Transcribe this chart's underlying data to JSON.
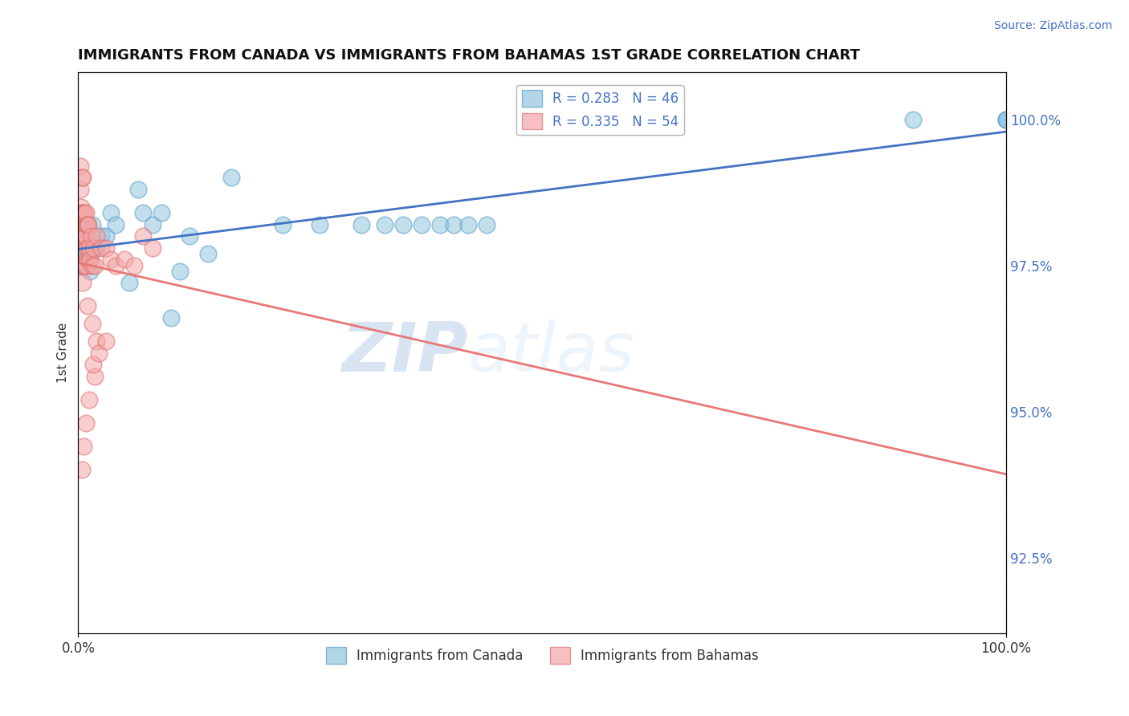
{
  "title": "IMMIGRANTS FROM CANADA VS IMMIGRANTS FROM BAHAMAS 1ST GRADE CORRELATION CHART",
  "source": "Source: ZipAtlas.com",
  "ylabel": "1st Grade",
  "xmin": 0.0,
  "xmax": 1.0,
  "ymin": 0.912,
  "ymax": 1.008,
  "yticks": [
    0.925,
    0.95,
    0.975,
    1.0
  ],
  "ytick_labels": [
    "92.5%",
    "95.0%",
    "97.5%",
    "100.0%"
  ],
  "xtick_labels": [
    "0.0%",
    "100.0%"
  ],
  "canada_color": "#92c5de",
  "canada_edge_color": "#5a9ec9",
  "bahamas_color": "#f4a6a6",
  "bahamas_edge_color": "#e07070",
  "legend_canada": "Immigrants from Canada",
  "legend_bahamas": "Immigrants from Bahamas",
  "R_canada": 0.283,
  "N_canada": 46,
  "R_bahamas": 0.335,
  "N_bahamas": 54,
  "trend_color_canada": "#4472c4",
  "trend_color_bahamas": "#e87878",
  "watermark_zip": "ZIP",
  "watermark_atlas": "atlas",
  "canada_x": [
    0.003,
    0.004,
    0.004,
    0.005,
    0.005,
    0.006,
    0.006,
    0.007,
    0.008,
    0.009,
    0.01,
    0.01,
    0.011,
    0.012,
    0.013,
    0.015,
    0.018,
    0.02,
    0.025,
    0.03,
    0.035,
    0.04,
    0.055,
    0.065,
    0.07,
    0.08,
    0.09,
    0.1,
    0.11,
    0.12,
    0.14,
    0.165,
    0.22,
    0.26,
    0.305,
    0.33,
    0.35,
    0.37,
    0.39,
    0.405,
    0.42,
    0.44,
    0.9,
    1.0,
    1.0,
    1.0
  ],
  "canada_y": [
    0.982,
    0.98,
    0.975,
    0.98,
    0.976,
    0.98,
    0.978,
    0.98,
    0.978,
    0.977,
    0.982,
    0.978,
    0.975,
    0.976,
    0.974,
    0.982,
    0.978,
    0.978,
    0.98,
    0.98,
    0.984,
    0.982,
    0.972,
    0.988,
    0.984,
    0.982,
    0.984,
    0.966,
    0.974,
    0.98,
    0.977,
    0.99,
    0.982,
    0.982,
    0.982,
    0.982,
    0.982,
    0.982,
    0.982,
    0.982,
    0.982,
    0.982,
    1.0,
    1.0,
    1.0,
    1.0
  ],
  "bahamas_x": [
    0.002,
    0.002,
    0.003,
    0.003,
    0.003,
    0.004,
    0.004,
    0.004,
    0.004,
    0.005,
    0.005,
    0.005,
    0.005,
    0.005,
    0.006,
    0.006,
    0.006,
    0.007,
    0.007,
    0.007,
    0.008,
    0.008,
    0.008,
    0.009,
    0.009,
    0.01,
    0.01,
    0.011,
    0.012,
    0.013,
    0.014,
    0.015,
    0.016,
    0.018,
    0.02,
    0.025,
    0.03,
    0.035,
    0.04,
    0.05,
    0.06,
    0.07,
    0.08,
    0.01,
    0.015,
    0.02,
    0.012,
    0.018,
    0.008,
    0.006,
    0.004,
    0.016,
    0.022,
    0.03
  ],
  "bahamas_y": [
    0.992,
    0.988,
    0.985,
    0.982,
    0.978,
    0.99,
    0.984,
    0.98,
    0.975,
    0.99,
    0.984,
    0.98,
    0.975,
    0.972,
    0.984,
    0.98,
    0.975,
    0.984,
    0.98,
    0.975,
    0.984,
    0.98,
    0.975,
    0.982,
    0.978,
    0.982,
    0.976,
    0.982,
    0.978,
    0.976,
    0.98,
    0.975,
    0.978,
    0.975,
    0.98,
    0.978,
    0.978,
    0.976,
    0.975,
    0.976,
    0.975,
    0.98,
    0.978,
    0.968,
    0.965,
    0.962,
    0.952,
    0.956,
    0.948,
    0.944,
    0.94,
    0.958,
    0.96,
    0.962
  ]
}
